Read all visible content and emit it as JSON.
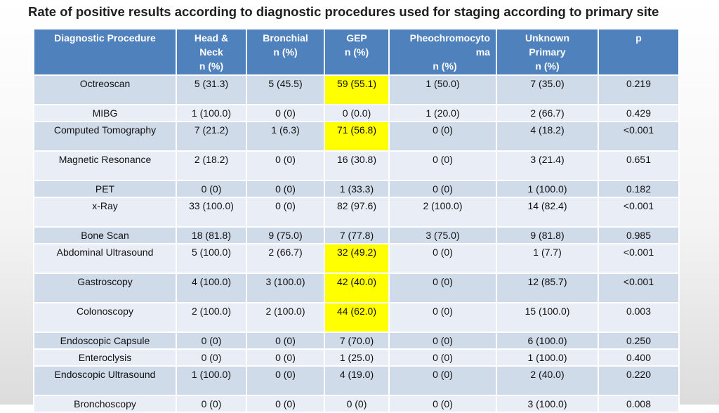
{
  "title": "Rate of positive results according to diagnostic procedures used for staging according to primary site",
  "columns": [
    [
      "Diagnostic Procedure"
    ],
    [
      "Head &",
      "Neck",
      "n (%)"
    ],
    [
      "Bronchial",
      "n (%)"
    ],
    [
      "GEP",
      "n (%)"
    ],
    [
      "Pheochromocyto",
      "ma",
      "n (%)"
    ],
    [
      "Unknown",
      "Primary",
      "n (%)"
    ],
    [
      "p"
    ]
  ],
  "highlight_color": "#ffff00",
  "header_color": "#4f81bd",
  "rows": [
    {
      "cells": [
        "Octreoscan",
        "5 (31.3)",
        "5 (45.5)",
        "59 (55.1)",
        "1 (50.0)",
        "7 (35.0)",
        "0.219"
      ],
      "highlight": [
        3
      ]
    },
    {
      "cells": [
        "MIBG",
        "1 (100.0)",
        "0 (0)",
        "0 (0.0)",
        "1 (20.0)",
        "2 (66.7)",
        "0.429"
      ],
      "highlight": []
    },
    {
      "cells": [
        "Computed Tomography",
        "7 (21.2)",
        "1 (6.3)",
        "71 (56.8)",
        "0 (0)",
        "4 (18.2)",
        "<0.001"
      ],
      "highlight": [
        3
      ]
    },
    {
      "cells": [
        "Magnetic Resonance",
        "2 (18.2)",
        "0 (0)",
        "16 (30.8)",
        "0 (0)",
        "3 (21.4)",
        "0.651"
      ],
      "highlight": []
    },
    {
      "cells": [
        "PET",
        "0 (0)",
        "0 (0)",
        "1 (33.3)",
        "0 (0)",
        "1 (100.0)",
        "0.182"
      ],
      "highlight": []
    },
    {
      "cells": [
        "x-Ray",
        "33 (100.0)",
        "0 (0)",
        "82 (97.6)",
        "2 (100.0)",
        "14 (82.4)",
        "<0.001"
      ],
      "highlight": []
    },
    {
      "cells": [
        "Bone Scan",
        "18 (81.8)",
        "9 (75.0)",
        "7 (77.8)",
        "3 (75.0)",
        "9 (81.8)",
        "0.985"
      ],
      "highlight": []
    },
    {
      "cells": [
        "Abdominal Ultrasound",
        "5 (100.0)",
        "2 (66.7)",
        "32 (49.2)",
        "0 (0)",
        "1 (7.7)",
        "<0.001"
      ],
      "highlight": [
        3
      ]
    },
    {
      "cells": [
        "Gastroscopy",
        "4 (100.0)",
        "3 (100.0)",
        "42 (40.0)",
        "0 (0)",
        "12 (85.7)",
        "<0.001"
      ],
      "highlight": [
        3
      ]
    },
    {
      "cells": [
        "Colonoscopy",
        "2 (100.0)",
        "2 (100.0)",
        "44 (62.0)",
        "0 (0)",
        "15 (100.0)",
        "0.003"
      ],
      "highlight": [
        3
      ]
    },
    {
      "cells": [
        "Endoscopic Capsule",
        "0 (0)",
        "0 (0)",
        "7 (70.0)",
        "0 (0)",
        "6 (100.0)",
        "0.250"
      ],
      "highlight": []
    },
    {
      "cells": [
        "Enteroclysis",
        "0 (0)",
        "0 (0)",
        "1 (25.0)",
        "0 (0)",
        "1 (100.0)",
        "0.400"
      ],
      "highlight": []
    },
    {
      "cells": [
        "Endoscopic Ultrasound",
        "1 (100.0)",
        "0 (0)",
        "4 (19.0)",
        "0 (0)",
        "2 (40.0)",
        "0.220"
      ],
      "highlight": []
    },
    {
      "cells": [
        "Bronchoscopy",
        "0 (0)",
        "0 (0)",
        "0 (0)",
        "0 (0)",
        "3 (100.0)",
        "0.008"
      ],
      "highlight": []
    }
  ]
}
